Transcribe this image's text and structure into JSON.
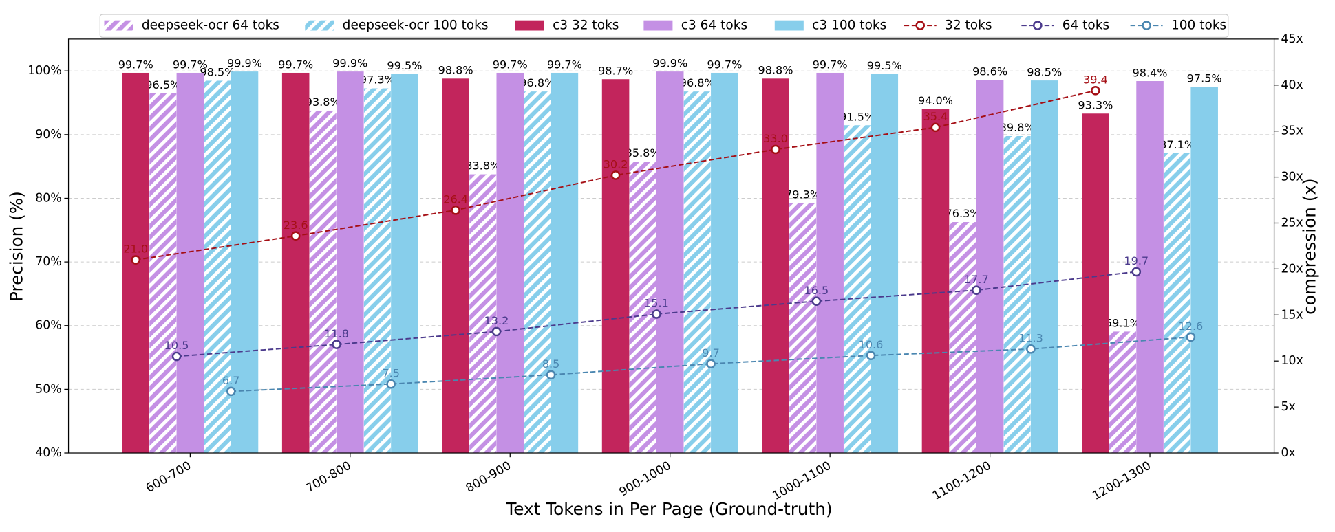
{
  "chart_data": {
    "type": "bar",
    "categories": [
      "600-700",
      "700-800",
      "800-900",
      "900-1000",
      "1000-1100",
      "1100-1200",
      "1200-1300"
    ],
    "series": [
      {
        "name": "deepseek-ocr 64 toks",
        "mark": "bar",
        "hatch": true,
        "color": "#c490e4",
        "values": [
          96.5,
          93.8,
          83.8,
          85.8,
          79.3,
          76.3,
          59.1
        ],
        "value_labels": [
          "96.5%",
          "93.8%",
          "83.8%",
          "85.8%",
          "79.3%",
          "76.3%",
          "59.1%"
        ]
      },
      {
        "name": "deepseek-ocr 100 toks",
        "mark": "bar",
        "hatch": true,
        "color": "#87ceeb",
        "values": [
          98.5,
          97.3,
          96.8,
          96.8,
          91.5,
          89.8,
          87.1
        ],
        "value_labels": [
          "98.5%",
          "97.3%",
          "96.8%",
          "96.8%",
          "91.5%",
          "89.8%",
          "87.1%"
        ]
      },
      {
        "name": "c3 32 toks",
        "mark": "bar",
        "color": "#c2255c",
        "values": [
          99.7,
          99.7,
          98.8,
          98.7,
          98.8,
          94.0,
          93.3
        ],
        "value_labels": [
          "99.7%",
          "99.7%",
          "98.8%",
          "98.7%",
          "98.8%",
          "94.0%",
          "93.3%"
        ]
      },
      {
        "name": "c3 64 toks",
        "mark": "bar",
        "color": "#c490e4",
        "values": [
          99.7,
          99.9,
          99.7,
          99.9,
          99.7,
          98.6,
          98.4
        ],
        "value_labels": [
          "99.7%",
          "99.9%",
          "99.7%",
          "99.9%",
          "99.7%",
          "98.6%",
          "98.4%"
        ]
      },
      {
        "name": "c3 100 toks",
        "mark": "bar",
        "color": "#87ceeb",
        "values": [
          99.9,
          99.5,
          99.7,
          99.7,
          99.5,
          98.5,
          97.5
        ],
        "value_labels": [
          "99.9%",
          "99.5%",
          "99.7%",
          "99.7%",
          "99.5%",
          "98.5%",
          "97.5%"
        ]
      },
      {
        "name": "32 toks",
        "mark": "line",
        "axis": "y2",
        "color": "#a50f15",
        "values": [
          21.0,
          23.6,
          26.4,
          30.2,
          33.0,
          35.4,
          39.4
        ],
        "value_labels": [
          "21.0",
          "23.6",
          "26.4",
          "30.2",
          "33.0",
          "35.4",
          "39.4"
        ]
      },
      {
        "name": "64 toks",
        "mark": "line",
        "axis": "y2",
        "color": "#4b3a8c",
        "values": [
          10.5,
          11.8,
          13.2,
          15.1,
          16.5,
          17.7,
          19.7
        ],
        "value_labels": [
          "10.5",
          "11.8",
          "13.2",
          "15.1",
          "16.5",
          "17.7",
          "19.7"
        ]
      },
      {
        "name": "100 toks",
        "mark": "line",
        "axis": "y2",
        "color": "#4a86b0",
        "values": [
          6.7,
          7.5,
          8.5,
          9.7,
          10.6,
          11.3,
          12.6
        ],
        "value_labels": [
          "6.7",
          "7.5",
          "8.5",
          "9.7",
          "10.6",
          "11.3",
          "12.6"
        ]
      }
    ],
    "xlabel": "Text Tokens in Per Page (Ground-truth)",
    "ylabel": "Precision (%)",
    "y2label": "compression (x)",
    "ylim": [
      40,
      105
    ],
    "yticks": [
      {
        "value": 40,
        "label": "40%"
      },
      {
        "value": 50,
        "label": "50%"
      },
      {
        "value": 60,
        "label": "60%"
      },
      {
        "value": 70,
        "label": "70%"
      },
      {
        "value": 80,
        "label": "80%"
      },
      {
        "value": 90,
        "label": "90%"
      },
      {
        "value": 100,
        "label": "100%"
      }
    ],
    "y2lim": [
      0,
      45
    ],
    "y2ticks": [
      {
        "value": 0,
        "label": "0x"
      },
      {
        "value": 5,
        "label": "5x"
      },
      {
        "value": 10,
        "label": "10x"
      },
      {
        "value": 15,
        "label": "15x"
      },
      {
        "value": 20,
        "label": "20x"
      },
      {
        "value": 25,
        "label": "25x"
      },
      {
        "value": 30,
        "label": "30x"
      },
      {
        "value": 35,
        "label": "35x"
      },
      {
        "value": 40,
        "label": "40x"
      },
      {
        "value": 45,
        "label": "45x"
      }
    ],
    "grid": true,
    "legend": "upper center"
  }
}
